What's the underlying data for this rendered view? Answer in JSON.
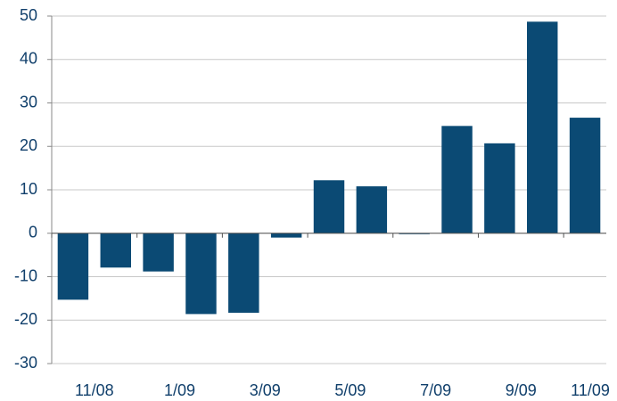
{
  "chart_data": {
    "type": "bar",
    "categories": [
      "11/08",
      null,
      "1/09",
      null,
      "3/09",
      null,
      "5/09",
      null,
      "7/09",
      null,
      "9/09",
      null,
      "11/09"
    ],
    "values": [
      -15.3,
      -7.9,
      -8.8,
      -18.6,
      -18.3,
      -1,
      12.2,
      10.8,
      0,
      24.7,
      20.7,
      48.7,
      26.6
    ],
    "color": "#0b4a74",
    "ylim": [
      -30,
      50
    ],
    "yticks": [
      -30,
      -20,
      -10,
      0,
      10,
      20,
      30,
      40,
      50
    ],
    "grid": true
  }
}
